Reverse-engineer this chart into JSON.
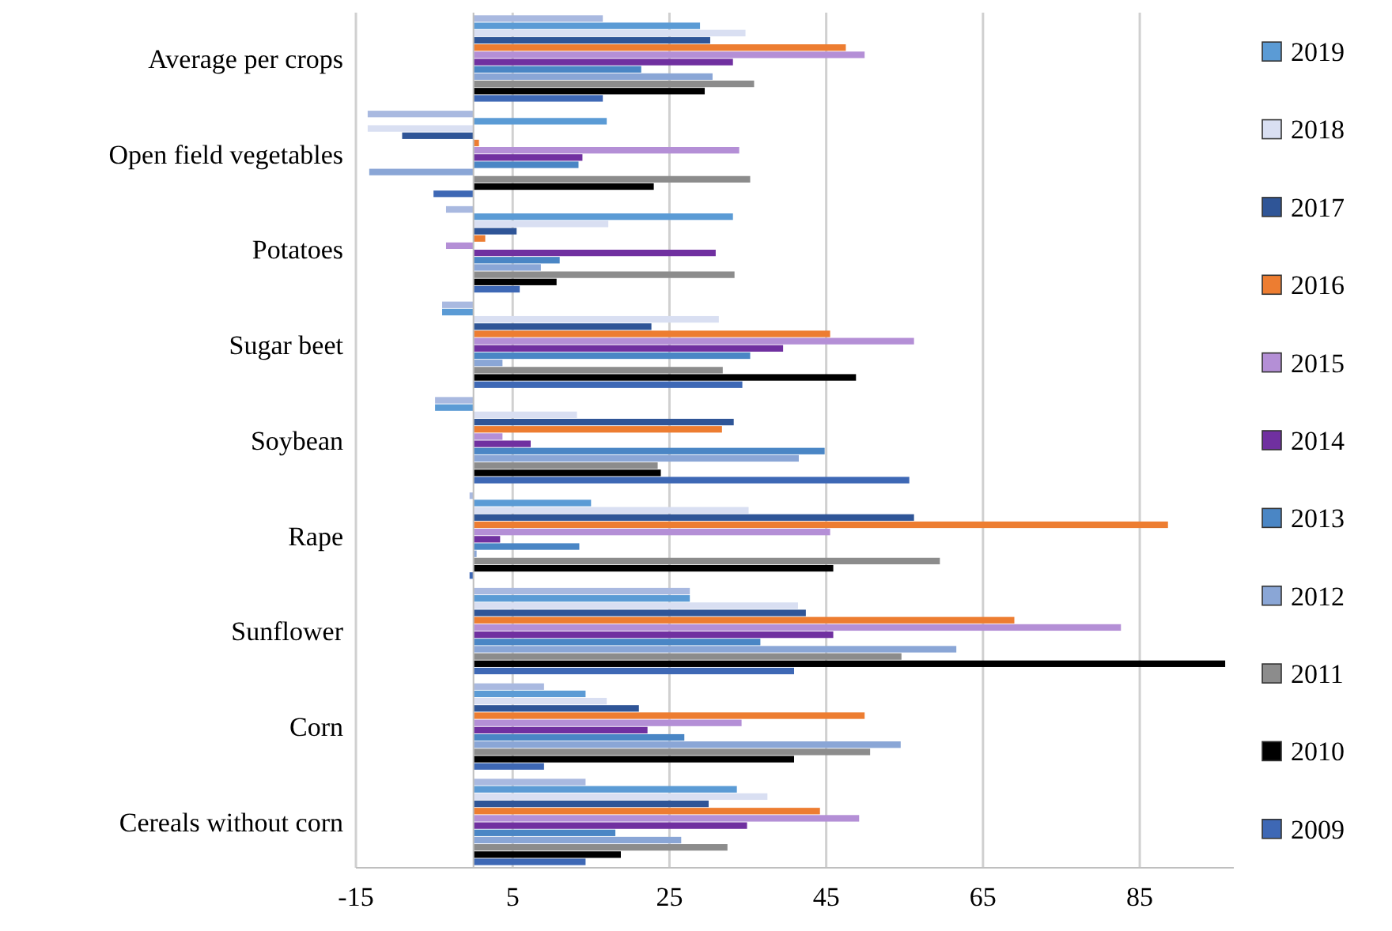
{
  "chart_data": {
    "type": "bar",
    "orientation": "horizontal",
    "categories": [
      "Average per crops",
      "Open field vegetables",
      "Potatoes",
      "Sugar beet",
      "Soybean",
      "Rape",
      "Sunflower",
      "Corn",
      "Cereals without corn"
    ],
    "series": [
      {
        "color": "#a9b9e0",
        "values": [
          16.5,
          -13.5,
          -3.5,
          -4.0,
          -4.9,
          -0.5,
          27.6,
          9.0,
          14.3
        ]
      },
      {
        "name": "2019",
        "color": "#5b9bd5",
        "values": [
          28.9,
          17.0,
          33.1,
          -4.0,
          -4.9,
          15.0,
          27.6,
          14.3,
          33.6
        ]
      },
      {
        "name": "2018",
        "color": "#d9dff2",
        "values": [
          34.7,
          -13.5,
          17.2,
          31.3,
          13.2,
          35.1,
          41.4,
          17.0,
          37.5
        ]
      },
      {
        "name": "2017",
        "color": "#2f5597",
        "values": [
          30.2,
          -9.1,
          5.5,
          22.7,
          33.2,
          56.2,
          42.4,
          21.1,
          30.0
        ]
      },
      {
        "name": "2016",
        "color": "#ed7d31",
        "values": [
          47.5,
          0.7,
          1.5,
          45.5,
          31.7,
          88.6,
          69.0,
          49.9,
          44.2
        ]
      },
      {
        "name": "2015",
        "color": "#b48fd6",
        "values": [
          49.9,
          33.9,
          -3.5,
          56.2,
          3.7,
          45.5,
          82.6,
          34.2,
          49.2
        ]
      },
      {
        "name": "2014",
        "color": "#7030a0",
        "values": [
          33.1,
          13.9,
          30.9,
          39.5,
          7.3,
          3.4,
          45.9,
          22.2,
          34.9
        ]
      },
      {
        "name": "2013",
        "color": "#4a86c5",
        "values": [
          21.4,
          13.4,
          11.0,
          35.3,
          44.8,
          13.5,
          36.6,
          26.9,
          18.1
        ]
      },
      {
        "name": "2012",
        "color": "#8aa6d6",
        "values": [
          30.5,
          -13.3,
          8.6,
          3.7,
          41.5,
          0.4,
          61.6,
          54.5,
          26.5
        ]
      },
      {
        "name": "2011",
        "color": "#8c8c8c",
        "values": [
          35.8,
          35.3,
          33.3,
          31.8,
          23.5,
          59.5,
          54.6,
          50.6,
          32.4
        ]
      },
      {
        "name": "2010",
        "color": "#000000",
        "values": [
          29.5,
          23.0,
          10.6,
          48.8,
          23.9,
          45.9,
          95.9,
          40.9,
          18.8
        ]
      },
      {
        "name": "2009",
        "color": "#3e68b5",
        "values": [
          16.5,
          -5.1,
          5.9,
          34.3,
          55.6,
          -0.5,
          40.9,
          9.0,
          14.3
        ]
      }
    ],
    "xlim": [
      -15,
      97
    ],
    "xticks": [
      -15,
      5,
      25,
      45,
      65,
      85
    ],
    "grid": "x",
    "legend": "right"
  }
}
